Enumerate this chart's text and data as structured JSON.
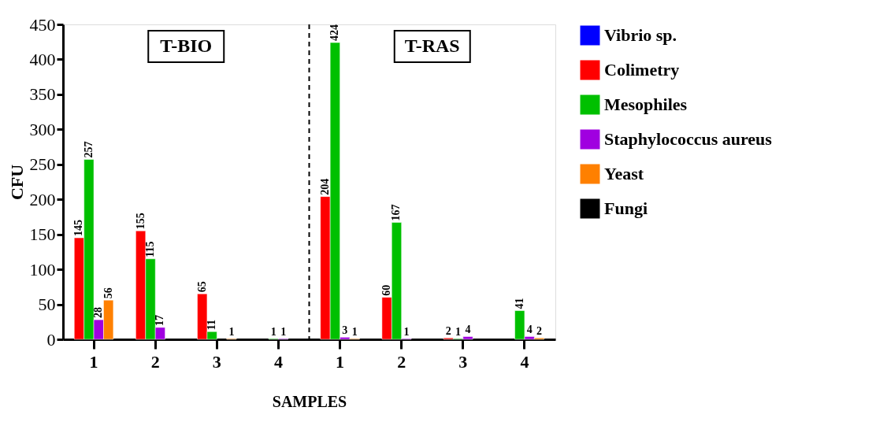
{
  "chart_data": {
    "type": "bar",
    "categories": [
      "1",
      "2",
      "3",
      "4",
      "1",
      "2",
      "3",
      "4"
    ],
    "xlabel": "SAMPLES",
    "ylabel": "CFU",
    "ylim": [
      0,
      450
    ],
    "yticks": [
      0,
      50,
      100,
      150,
      200,
      250,
      300,
      350,
      400,
      450
    ],
    "series": [
      {
        "name": "Vibrio sp.",
        "color": "#0000ff",
        "values": [
          null,
          null,
          null,
          null,
          null,
          null,
          null,
          null
        ],
        "value_labels": [
          null,
          null,
          null,
          null,
          null,
          null,
          null,
          null
        ]
      },
      {
        "name": "Colimetry",
        "color": "#ff0000",
        "values": [
          145,
          155,
          65,
          null,
          204,
          60,
          2,
          null
        ],
        "value_labels": [
          "145",
          "155",
          "65",
          null,
          "204",
          "60",
          "2",
          null
        ]
      },
      {
        "name": "Mesophiles",
        "color": "#00c000",
        "values": [
          257,
          115,
          11,
          1,
          424,
          167,
          1,
          41
        ],
        "value_labels": [
          "257",
          "115",
          "11",
          "1",
          "424",
          "167",
          "1",
          "41"
        ]
      },
      {
        "name": "Staphylococcus aureus",
        "color": "#a000e0",
        "values": [
          28,
          17,
          null,
          1,
          3,
          1,
          4,
          4
        ],
        "value_labels": [
          "28",
          "17",
          null,
          "1",
          "3",
          "1",
          "4",
          "4"
        ]
      },
      {
        "name": "Yeast",
        "color": "#ff8000",
        "values": [
          56,
          null,
          1,
          null,
          1,
          null,
          null,
          2
        ],
        "value_labels": [
          "56",
          null,
          "1",
          null,
          "1",
          null,
          null,
          "2"
        ]
      },
      {
        "name": "Fungi",
        "color": "#000000",
        "values": [
          null,
          null,
          null,
          null,
          null,
          null,
          null,
          null
        ],
        "value_labels": [
          null,
          null,
          null,
          null,
          null,
          null,
          null,
          null
        ]
      }
    ],
    "annotations": [
      "T-BIO",
      "T-RAS"
    ],
    "legend": "right",
    "grid": false
  }
}
